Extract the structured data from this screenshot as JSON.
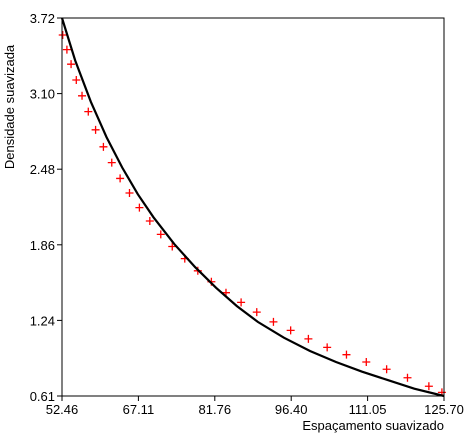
{
  "chart_data": {
    "type": "scatter",
    "title": "",
    "xlabel": "Espaçamento suavizado",
    "ylabel": "Densidade suavizada",
    "xlim": [
      52.46,
      125.7
    ],
    "ylim": [
      0.61,
      3.72
    ],
    "x_ticks": [
      "52.46",
      "67.11",
      "81.76",
      "96.40",
      "111.05",
      "125.70"
    ],
    "y_ticks": [
      "0.61",
      "1.24",
      "1.86",
      "2.48",
      "3.10",
      "3.72"
    ],
    "grid": false,
    "legend": "none",
    "series": [
      {
        "kind": "points",
        "marker": "+",
        "color": "#ff0000",
        "x": [
          52.6,
          53.4,
          54.2,
          55.2,
          56.3,
          57.5,
          58.9,
          60.4,
          62.0,
          63.6,
          65.4,
          67.3,
          69.3,
          71.4,
          73.6,
          76.0,
          78.5,
          81.1,
          83.9,
          86.8,
          89.8,
          93.0,
          96.3,
          99.7,
          103.3,
          107.0,
          110.8,
          114.7,
          118.7,
          122.8,
          125.3
        ],
        "y": [
          3.58,
          3.46,
          3.34,
          3.21,
          3.08,
          2.95,
          2.8,
          2.66,
          2.53,
          2.4,
          2.28,
          2.16,
          2.05,
          1.94,
          1.84,
          1.74,
          1.64,
          1.55,
          1.46,
          1.38,
          1.3,
          1.22,
          1.15,
          1.08,
          1.01,
          0.95,
          0.89,
          0.83,
          0.76,
          0.69,
          0.64
        ]
      },
      {
        "kind": "line",
        "color": "#000000",
        "x": [
          52.46,
          55,
          58,
          61,
          64,
          67,
          70,
          74,
          78,
          82,
          86,
          90,
          95,
          100,
          105,
          110,
          115,
          120,
          125.7
        ],
        "y": [
          3.72,
          3.37,
          3.03,
          2.74,
          2.49,
          2.27,
          2.08,
          1.86,
          1.67,
          1.5,
          1.35,
          1.22,
          1.09,
          0.98,
          0.89,
          0.81,
          0.74,
          0.67,
          0.61
        ]
      }
    ]
  }
}
